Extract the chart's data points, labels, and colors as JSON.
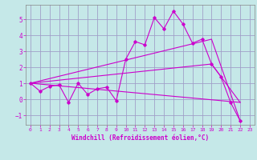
{
  "xlabel": "Windchill (Refroidissement éolien,°C)",
  "background_color": "#c5e8e8",
  "grid_color": "#a0a0c8",
  "line_color": "#cc00cc",
  "xlim": [
    -0.5,
    23.5
  ],
  "ylim": [
    -1.6,
    5.9
  ],
  "xticks": [
    0,
    1,
    2,
    3,
    4,
    5,
    6,
    7,
    8,
    9,
    10,
    11,
    12,
    13,
    14,
    15,
    16,
    17,
    18,
    19,
    20,
    21,
    22,
    23
  ],
  "yticks": [
    -1,
    0,
    1,
    2,
    3,
    4,
    5
  ],
  "line1_x": [
    0,
    1,
    2,
    3,
    4,
    5,
    6,
    7,
    8,
    9,
    10,
    11,
    12,
    13,
    14,
    15,
    16,
    17,
    18,
    19,
    20,
    21,
    22
  ],
  "line1_y": [
    1.0,
    0.5,
    0.8,
    0.9,
    -0.2,
    1.0,
    0.3,
    0.65,
    0.75,
    -0.1,
    2.5,
    3.6,
    3.4,
    5.1,
    4.4,
    5.5,
    4.7,
    3.5,
    3.75,
    2.2,
    1.4,
    -0.2,
    -1.35
  ],
  "line2_x": [
    0,
    22
  ],
  "line2_y": [
    1.0,
    -0.2
  ],
  "line3_x": [
    0,
    19,
    22
  ],
  "line3_y": [
    1.0,
    3.75,
    -1.35
  ],
  "line4_x": [
    0,
    19,
    22
  ],
  "line4_y": [
    1.0,
    2.2,
    -0.2
  ]
}
